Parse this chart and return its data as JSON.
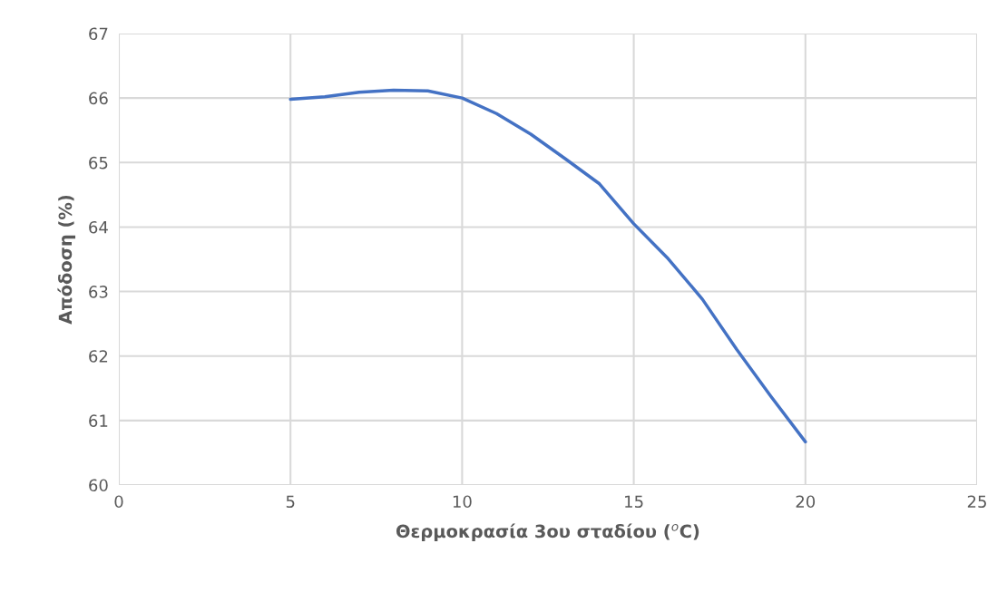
{
  "chart_data": {
    "type": "line",
    "xlabel": "Θερμοκρασία 3ου σταδίου ($^{o}$C)",
    "ylabel": "Απόδοση (%)",
    "x": [
      5,
      6,
      7,
      8,
      9,
      10,
      11,
      12,
      13,
      14,
      15,
      16,
      17,
      18,
      19,
      20
    ],
    "series": [
      {
        "color": "#4472c4",
        "values": [
          65.98,
          66.02,
          66.09,
          66.12,
          66.11,
          66.0,
          65.76,
          65.44,
          65.06,
          64.67,
          64.05,
          63.51,
          62.88,
          62.1,
          61.37,
          60.67
        ]
      }
    ],
    "xlim": [
      0,
      25
    ],
    "xticks": [
      0,
      5,
      10,
      15,
      20,
      25
    ],
    "ylim": [
      60,
      67
    ],
    "yticks": [
      60,
      61,
      62,
      63,
      64,
      65,
      66,
      67
    ],
    "grid": true,
    "marker": "none",
    "line_style": "solid"
  }
}
